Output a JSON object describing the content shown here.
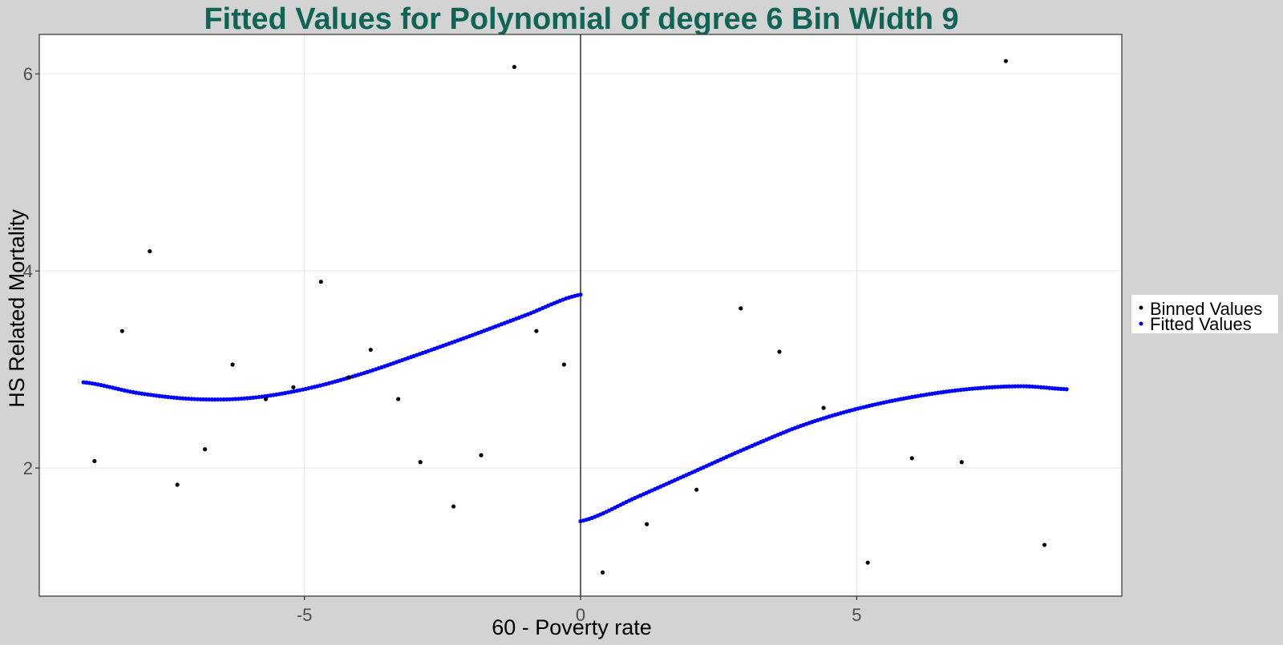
{
  "colors": {
    "page_background": "#d3d3d3",
    "panel_background": "#ffffff",
    "grid": "#ebebeb",
    "title": "#0f6455",
    "binned_points": "#000000",
    "fitted_points": "#0000ff",
    "axis_text": "#4d4d4d",
    "axis_title": "#000000",
    "cutoff_line": "#000000"
  },
  "chart_data": {
    "type": "scatter",
    "title": "Fitted Values for Polynomial of degree 6 Bin Width 9",
    "xlabel": "60 - Poverty rate",
    "ylabel": "HS Related Mortality",
    "xlim": [
      -9.8,
      9.8
    ],
    "ylim": [
      0.7,
      6.4
    ],
    "x_ticks": [
      -5,
      0,
      5
    ],
    "x_tick_labels": [
      "-5",
      "0",
      "5"
    ],
    "y_ticks": [
      2,
      4,
      6
    ],
    "y_tick_labels": [
      "2",
      "4",
      "6"
    ],
    "grid": true,
    "legend_position": "right",
    "vertical_line_x": 0,
    "legend": [
      {
        "label": "Binned Values",
        "color": "#000000"
      },
      {
        "label": "Fitted Values",
        "color": "#0000ff"
      }
    ],
    "series": [
      {
        "name": "Binned Values",
        "color": "#000000",
        "points": [
          {
            "x": -8.8,
            "y": 2.07
          },
          {
            "x": -8.3,
            "y": 3.39
          },
          {
            "x": -7.8,
            "y": 4.2
          },
          {
            "x": -7.3,
            "y": 1.83
          },
          {
            "x": -6.8,
            "y": 2.19
          },
          {
            "x": -6.3,
            "y": 3.05
          },
          {
            "x": -5.7,
            "y": 2.7
          },
          {
            "x": -5.2,
            "y": 2.82
          },
          {
            "x": -4.7,
            "y": 3.89
          },
          {
            "x": -4.2,
            "y": 2.92
          },
          {
            "x": -3.8,
            "y": 3.2
          },
          {
            "x": -3.3,
            "y": 2.7
          },
          {
            "x": -2.9,
            "y": 2.06
          },
          {
            "x": -2.3,
            "y": 1.61
          },
          {
            "x": -1.8,
            "y": 2.13
          },
          {
            "x": -1.2,
            "y": 6.07
          },
          {
            "x": -0.8,
            "y": 3.39
          },
          {
            "x": -0.3,
            "y": 3.05
          },
          {
            "x": 0.4,
            "y": 0.94
          },
          {
            "x": 1.2,
            "y": 1.43
          },
          {
            "x": 2.1,
            "y": 1.78
          },
          {
            "x": 2.9,
            "y": 3.62
          },
          {
            "x": 3.6,
            "y": 3.18
          },
          {
            "x": 4.4,
            "y": 2.61
          },
          {
            "x": 5.2,
            "y": 1.04
          },
          {
            "x": 6.0,
            "y": 2.1
          },
          {
            "x": 6.9,
            "y": 2.06
          },
          {
            "x": 7.7,
            "y": 6.13
          },
          {
            "x": 8.4,
            "y": 1.22
          }
        ]
      },
      {
        "name": "Fitted Values",
        "color": "#0000ff",
        "curves": [
          {
            "x_from": -9.0,
            "x_to": 0.0,
            "knots": [
              {
                "x": -9.0,
                "y": 2.87
              },
              {
                "x": -8.0,
                "y": 2.76
              },
              {
                "x": -7.0,
                "y": 2.7
              },
              {
                "x": -6.0,
                "y": 2.71
              },
              {
                "x": -5.0,
                "y": 2.8
              },
              {
                "x": -4.0,
                "y": 2.95
              },
              {
                "x": -3.0,
                "y": 3.14
              },
              {
                "x": -2.0,
                "y": 3.34
              },
              {
                "x": -1.0,
                "y": 3.55
              },
              {
                "x": 0.0,
                "y": 3.76
              }
            ]
          },
          {
            "x_from": 0.0,
            "x_to": 8.8,
            "knots": [
              {
                "x": 0.0,
                "y": 1.46
              },
              {
                "x": 1.0,
                "y": 1.7
              },
              {
                "x": 2.0,
                "y": 1.95
              },
              {
                "x": 3.0,
                "y": 2.2
              },
              {
                "x": 4.0,
                "y": 2.43
              },
              {
                "x": 5.0,
                "y": 2.6
              },
              {
                "x": 6.0,
                "y": 2.72
              },
              {
                "x": 7.0,
                "y": 2.8
              },
              {
                "x": 8.0,
                "y": 2.83
              },
              {
                "x": 8.8,
                "y": 2.8
              }
            ]
          }
        ]
      }
    ]
  }
}
